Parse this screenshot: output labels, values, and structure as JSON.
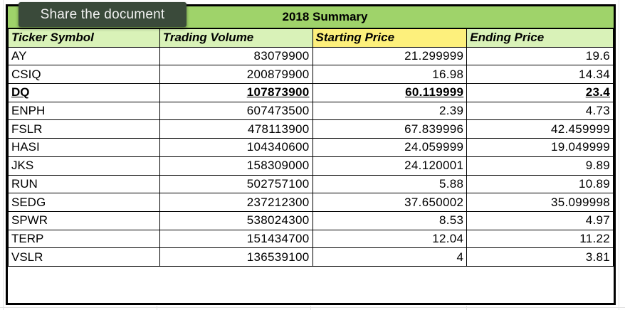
{
  "share_button": {
    "label": "Share the document"
  },
  "sheet": {
    "title": "2018 Summary",
    "headers": [
      "Ticker Symbol",
      "Trading Volume",
      "Starting Price",
      "Ending Price"
    ],
    "rows": [
      [
        "AY",
        "83079900",
        "21.299999",
        "19.6"
      ],
      [
        "CSIQ",
        "200879900",
        "16.98",
        "14.34"
      ],
      [
        "DQ",
        "107873900",
        "60.119999",
        "23.4"
      ],
      [
        "ENPH",
        "607473500",
        "2.39",
        "4.73"
      ],
      [
        "FSLR",
        "478113900",
        "67.839996",
        "42.459999"
      ],
      [
        "HASI",
        "104340600",
        "24.059999",
        "19.049999"
      ],
      [
        "JKS",
        "158309000",
        "24.120001",
        "9.89"
      ],
      [
        "RUN",
        "502757100",
        "5.88",
        "10.89"
      ],
      [
        "SEDG",
        "237212300",
        "37.650002",
        "35.099998"
      ],
      [
        "SPWR",
        "538024300",
        "8.53",
        "4.97"
      ],
      [
        "TERP",
        "151434700",
        "12.04",
        "11.22"
      ],
      [
        "VSLR",
        "136539100",
        "4",
        "3.81"
      ]
    ],
    "highlighted_row": "DQ",
    "colors": {
      "title_bg": "#9fd36a",
      "header_bg": "#d9f2b8",
      "header_highlight": "#fdf07c"
    }
  }
}
